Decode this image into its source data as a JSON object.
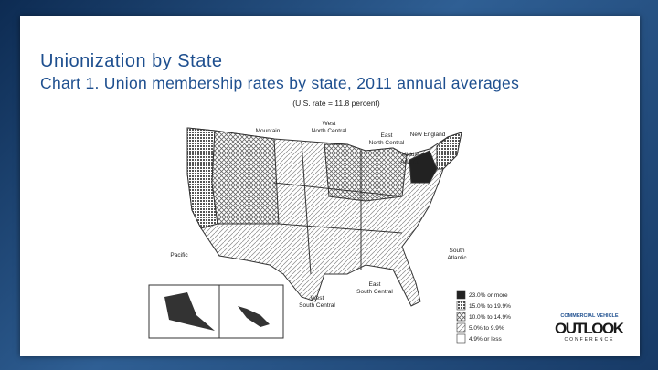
{
  "slide": {
    "title": "Unionization by State",
    "subtitle": "Chart 1. Union membership rates by state, 2011 annual averages",
    "map": {
      "caption": "(U.S. rate = 11.8 percent)",
      "regions": [
        {
          "lines": [
            "Mountain"
          ]
        },
        {
          "lines": [
            "West",
            "North Central"
          ]
        },
        {
          "lines": [
            "East",
            "North Central"
          ]
        },
        {
          "lines": [
            "New England"
          ]
        },
        {
          "lines": [
            "Middle",
            "Atlantic"
          ]
        },
        {
          "lines": [
            "Pacific"
          ]
        },
        {
          "lines": [
            "West",
            "South Central"
          ]
        },
        {
          "lines": [
            "East",
            "South Central"
          ]
        },
        {
          "lines": [
            "South",
            "Atlantic"
          ]
        }
      ],
      "legend": [
        "23.0% or more",
        "15.0% to 19.9%",
        "10.0% to 14.9%",
        "5.0% to 9.9%",
        "4.9% or less"
      ]
    },
    "logo": {
      "line1": "COMMERCIAL VEHICLE",
      "line2": "OUTLOOK",
      "line3": "CONFERENCE"
    }
  }
}
